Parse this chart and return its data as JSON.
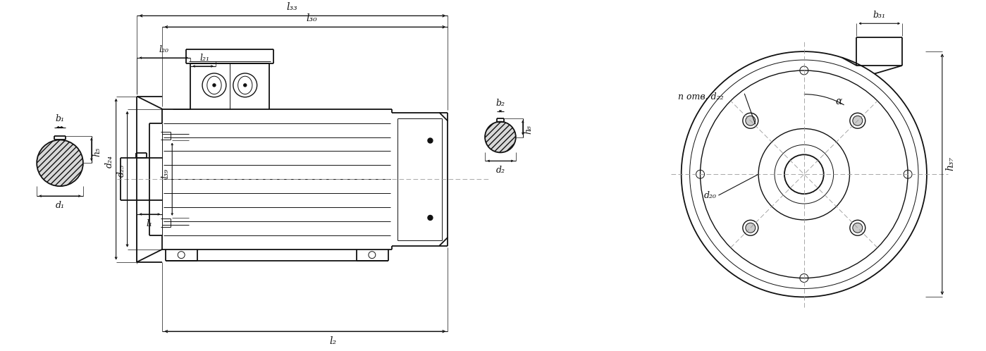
{
  "bg_color": "#ffffff",
  "line_color": "#111111",
  "figsize": [
    13.99,
    4.98
  ],
  "dpi": 100,
  "labels": {
    "l33": "l₃₃",
    "l30": "l₃₀",
    "l20": "l₂₀",
    "l21": "l₂₁",
    "l39": "l₃₉",
    "l1": "l₁",
    "l2": "l₂",
    "b1": "b₁",
    "h5": "h₅",
    "d1": "d₁",
    "d24": "d₂₄",
    "d25": "d₂₅",
    "b2": "b₂",
    "h6": "h₆",
    "d2": "d₂",
    "n_otv_d22": "n отв. d₂₂",
    "b31": "b₃₁",
    "alpha": "α",
    "d20": "d₂₀",
    "h37": "h₃₇"
  }
}
